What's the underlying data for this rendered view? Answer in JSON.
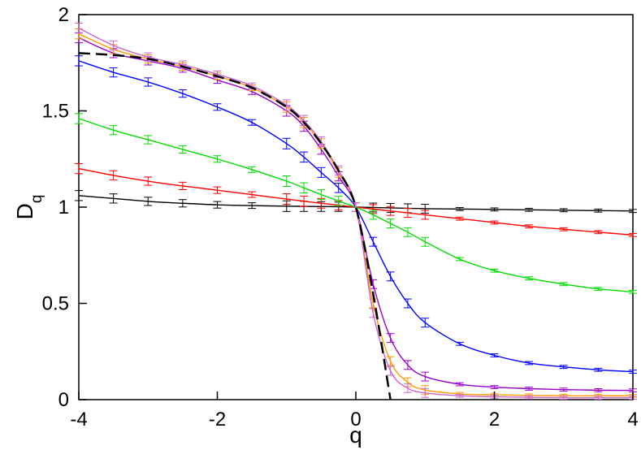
{
  "chart_data": {
    "type": "line",
    "xlabel": "q",
    "ylabel": "D",
    "ylabel_subscript": "q",
    "xlim": [
      -4,
      4
    ],
    "ylim": [
      0,
      2
    ],
    "xticks": [
      -4,
      -2,
      0,
      2,
      4
    ],
    "yticks": [
      0,
      0.5,
      1,
      1.5,
      2
    ],
    "grid": false,
    "x": [
      -4,
      -3.5,
      -3,
      -2.5,
      -2,
      -1.5,
      -1,
      -0.75,
      -0.5,
      -0.25,
      0,
      0.25,
      0.5,
      0.75,
      1,
      1.5,
      2,
      2.5,
      3,
      3.5,
      4
    ],
    "series": [
      {
        "color": "#000000",
        "style": "solid",
        "errorbars": true,
        "values": [
          1.06,
          1.045,
          1.03,
          1.02,
          1.012,
          1.008,
          1.005,
          1.004,
          1.003,
          1.002,
          1.0,
          0.998,
          0.996,
          0.994,
          0.992,
          0.99,
          0.988,
          0.986,
          0.984,
          0.982,
          0.98
        ]
      },
      {
        "color": "#ff0000",
        "style": "solid",
        "errorbars": true,
        "values": [
          1.2,
          1.165,
          1.135,
          1.11,
          1.088,
          1.065,
          1.042,
          1.031,
          1.02,
          1.01,
          1.0,
          0.99,
          0.98,
          0.97,
          0.96,
          0.94,
          0.92,
          0.9,
          0.885,
          0.87,
          0.855
        ]
      },
      {
        "color": "#00dd00",
        "style": "solid",
        "errorbars": true,
        "values": [
          1.46,
          1.4,
          1.35,
          1.3,
          1.25,
          1.195,
          1.135,
          1.1,
          1.065,
          1.032,
          1.0,
          0.96,
          0.915,
          0.87,
          0.82,
          0.73,
          0.67,
          0.63,
          0.6,
          0.575,
          0.56
        ]
      },
      {
        "color": "#0000ff",
        "style": "solid",
        "errorbars": true,
        "values": [
          1.76,
          1.7,
          1.65,
          1.59,
          1.52,
          1.44,
          1.33,
          1.26,
          1.18,
          1.1,
          1.0,
          0.82,
          0.64,
          0.5,
          0.4,
          0.29,
          0.23,
          0.19,
          0.17,
          0.155,
          0.145
        ]
      },
      {
        "color": "#9900cc",
        "style": "solid",
        "errorbars": true,
        "values": [
          1.88,
          1.8,
          1.76,
          1.72,
          1.66,
          1.6,
          1.5,
          1.42,
          1.3,
          1.16,
          1.0,
          0.6,
          0.32,
          0.18,
          0.12,
          0.08,
          0.065,
          0.057,
          0.052,
          0.049,
          0.048
        ]
      },
      {
        "color": "#ff9900",
        "style": "solid",
        "errorbars": true,
        "values": [
          1.9,
          1.82,
          1.77,
          1.73,
          1.68,
          1.62,
          1.52,
          1.44,
          1.33,
          1.18,
          1.0,
          0.5,
          0.2,
          0.09,
          0.05,
          0.03,
          0.025,
          0.022,
          0.02,
          0.02,
          0.02
        ]
      },
      {
        "color": "#cc66cc",
        "style": "solid",
        "errorbars": true,
        "values": [
          1.93,
          1.84,
          1.78,
          1.74,
          1.69,
          1.63,
          1.53,
          1.45,
          1.34,
          1.19,
          1.0,
          0.45,
          0.15,
          0.06,
          0.035,
          0.02,
          0.015,
          0.012,
          0.01,
          0.01,
          0.01
        ]
      },
      {
        "color": "#000000",
        "style": "dashed",
        "errorbars": false,
        "values": [
          1.8,
          1.79,
          1.77,
          1.73,
          1.68,
          1.62,
          1.52,
          1.44,
          1.33,
          1.19,
          1.0,
          0.55,
          0.0,
          null,
          null,
          null,
          null,
          null,
          null,
          null,
          null
        ]
      }
    ]
  }
}
